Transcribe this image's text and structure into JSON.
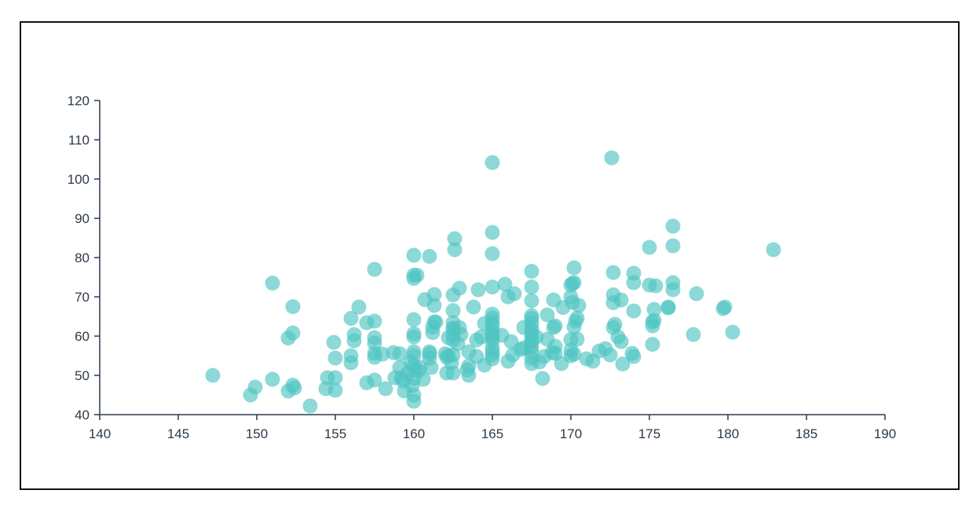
{
  "chart_data": {
    "type": "scatter",
    "title": "",
    "xlabel": "",
    "ylabel": "",
    "xlim": [
      140,
      190
    ],
    "ylim": [
      40,
      120
    ],
    "x_ticks": [
      "140",
      "145",
      "150",
      "155",
      "160",
      "165",
      "170",
      "175",
      "180",
      "185",
      "190"
    ],
    "y_ticks": [
      "40",
      "50",
      "60",
      "70",
      "80",
      "90",
      "100",
      "110",
      "120"
    ],
    "grid": false,
    "point_color": "#4ec5c1",
    "points": [
      [
        147.2,
        50
      ],
      [
        149.6,
        45
      ],
      [
        149.9,
        47
      ],
      [
        151,
        73.5
      ],
      [
        151,
        49
      ],
      [
        152,
        46
      ],
      [
        152,
        59.5
      ],
      [
        152.3,
        60.8
      ],
      [
        152.3,
        47.5
      ],
      [
        152.3,
        67.5
      ],
      [
        152.4,
        46.8
      ],
      [
        153.4,
        42.2
      ],
      [
        154.4,
        46.6
      ],
      [
        154.5,
        49.4
      ],
      [
        154.9,
        58.4
      ],
      [
        155,
        54.4
      ],
      [
        155,
        49.4
      ],
      [
        155,
        46.2
      ],
      [
        156,
        53.2
      ],
      [
        156,
        64.5
      ],
      [
        156,
        55
      ],
      [
        156.2,
        60.4
      ],
      [
        156.2,
        58.8
      ],
      [
        156.5,
        67.4
      ],
      [
        157,
        63.4
      ],
      [
        157,
        48.1
      ],
      [
        157.5,
        77
      ],
      [
        157.5,
        63.8
      ],
      [
        157.5,
        59.6
      ],
      [
        157.5,
        55.6
      ],
      [
        157.5,
        54.6
      ],
      [
        157.5,
        48.8
      ],
      [
        157.5,
        58.2
      ],
      [
        158,
        55.4
      ],
      [
        158.2,
        46.6
      ],
      [
        158.7,
        55.8
      ],
      [
        158.8,
        49.4
      ],
      [
        159.1,
        55.5
      ],
      [
        159.1,
        52
      ],
      [
        159.2,
        49.4
      ],
      [
        159.3,
        48.6
      ],
      [
        159.4,
        46
      ],
      [
        159.6,
        50.4
      ],
      [
        159.8,
        53.4
      ],
      [
        159.9,
        47.4
      ],
      [
        160,
        51.4
      ],
      [
        160,
        56
      ],
      [
        160,
        49.2
      ],
      [
        160,
        45
      ],
      [
        160,
        43.4
      ],
      [
        160,
        52.4
      ],
      [
        160,
        55
      ],
      [
        160,
        59.8
      ],
      [
        160,
        60.6
      ],
      [
        160,
        64.2
      ],
      [
        160,
        80.6
      ],
      [
        160,
        75.5
      ],
      [
        160,
        74.7
      ],
      [
        160.2,
        75.5
      ],
      [
        160.3,
        51.2
      ],
      [
        160.4,
        52
      ],
      [
        160.6,
        49
      ],
      [
        160.7,
        69.3
      ],
      [
        161,
        80.3
      ],
      [
        161,
        54.4
      ],
      [
        161,
        56
      ],
      [
        161,
        55.5
      ],
      [
        161.1,
        52
      ],
      [
        161.2,
        60.9
      ],
      [
        161.2,
        62.3
      ],
      [
        161.3,
        63.6
      ],
      [
        161.3,
        70.6
      ],
      [
        161.3,
        67.8
      ],
      [
        161.4,
        63.6
      ],
      [
        162,
        55.5
      ],
      [
        162.1,
        54.6
      ],
      [
        162.1,
        50.6
      ],
      [
        162.2,
        55
      ],
      [
        162.2,
        59.6
      ],
      [
        162.4,
        53.2
      ],
      [
        162.5,
        50.6
      ],
      [
        162.5,
        55.2
      ],
      [
        162.5,
        60.1
      ],
      [
        162.5,
        61.8
      ],
      [
        162.5,
        62
      ],
      [
        162.5,
        63.4
      ],
      [
        162.5,
        59
      ],
      [
        162.5,
        66.5
      ],
      [
        162.5,
        70.5
      ],
      [
        162.6,
        84.8
      ],
      [
        162.6,
        82
      ],
      [
        162.8,
        58
      ],
      [
        162.9,
        62.2
      ],
      [
        162.9,
        72.2
      ],
      [
        163,
        60.4
      ],
      [
        163.4,
        51.4
      ],
      [
        163.5,
        50
      ],
      [
        163.5,
        52.4
      ],
      [
        163.5,
        56
      ],
      [
        163.8,
        67.4
      ],
      [
        164,
        59
      ],
      [
        164,
        54.8
      ],
      [
        164.1,
        71.8
      ],
      [
        164.3,
        59.8
      ],
      [
        164.5,
        52.6
      ],
      [
        164.5,
        63.2
      ],
      [
        165,
        55.2
      ],
      [
        165,
        56
      ],
      [
        165,
        62.6
      ],
      [
        165,
        57
      ],
      [
        165,
        58.8
      ],
      [
        165,
        59.6
      ],
      [
        165,
        60.4
      ],
      [
        165,
        61.1
      ],
      [
        165,
        63.4
      ],
      [
        165,
        65.6
      ],
      [
        165,
        64.6
      ],
      [
        165,
        54.2
      ],
      [
        165,
        72.5
      ],
      [
        165,
        86.4
      ],
      [
        165,
        81
      ],
      [
        165,
        104.2
      ],
      [
        165.6,
        60.2
      ],
      [
        165.8,
        73.2
      ],
      [
        166,
        53.6
      ],
      [
        166,
        70
      ],
      [
        166.2,
        58.6
      ],
      [
        166.3,
        55.2
      ],
      [
        166.4,
        70.8
      ],
      [
        166.8,
        56.6
      ],
      [
        167,
        57
      ],
      [
        167,
        62.2
      ],
      [
        167.5,
        53
      ],
      [
        167.5,
        54.4
      ],
      [
        167.5,
        56
      ],
      [
        167.5,
        57.2
      ],
      [
        167.5,
        58.4
      ],
      [
        167.5,
        59
      ],
      [
        167.5,
        60
      ],
      [
        167.5,
        61
      ],
      [
        167.5,
        62
      ],
      [
        167.5,
        63.2
      ],
      [
        167.5,
        64.5
      ],
      [
        167.5,
        65.2
      ],
      [
        167.5,
        69
      ],
      [
        167.5,
        72.5
      ],
      [
        167.5,
        76.5
      ],
      [
        167.8,
        59.8
      ],
      [
        168,
        53.4
      ],
      [
        168.2,
        49.2
      ],
      [
        168.3,
        54.8
      ],
      [
        168.5,
        59.2
      ],
      [
        168.5,
        65.4
      ],
      [
        168.8,
        55.8
      ],
      [
        168.9,
        62.2
      ],
      [
        168.9,
        69.2
      ],
      [
        169,
        55.6
      ],
      [
        169,
        57.4
      ],
      [
        169,
        62.6
      ],
      [
        169.4,
        53
      ],
      [
        169.5,
        67.3
      ],
      [
        170,
        55
      ],
      [
        170,
        56.4
      ],
      [
        170,
        59.1
      ],
      [
        170,
        70
      ],
      [
        170,
        73
      ],
      [
        170.1,
        68.6
      ],
      [
        170.1,
        73.4
      ],
      [
        170.2,
        62.3
      ],
      [
        170.2,
        55.4
      ],
      [
        170.2,
        77.4
      ],
      [
        170.2,
        73.6
      ],
      [
        170.3,
        63.8
      ],
      [
        170.4,
        59.2
      ],
      [
        170.4,
        64.6
      ],
      [
        170.5,
        67.8
      ],
      [
        171,
        54.2
      ],
      [
        171.4,
        53.6
      ],
      [
        171.8,
        56.2
      ],
      [
        172.2,
        56.8
      ],
      [
        172.5,
        55.2
      ],
      [
        172.6,
        105.4
      ],
      [
        172.7,
        76.2
      ],
      [
        172.7,
        62.2
      ],
      [
        172.7,
        68.5
      ],
      [
        172.7,
        70.5
      ],
      [
        172.8,
        63
      ],
      [
        173,
        59.8
      ],
      [
        173.2,
        69.2
      ],
      [
        173.3,
        52.9
      ],
      [
        173.2,
        58.6
      ],
      [
        173.9,
        55.6
      ],
      [
        174,
        54.8
      ],
      [
        174,
        66.4
      ],
      [
        174,
        73.6
      ],
      [
        174,
        76
      ],
      [
        175,
        73
      ],
      [
        175,
        82.6
      ],
      [
        175.2,
        57.9
      ],
      [
        175.2,
        62.6
      ],
      [
        175.2,
        63.6
      ],
      [
        175.3,
        64
      ],
      [
        175.3,
        66.8
      ],
      [
        175.4,
        72.8
      ],
      [
        176.2,
        67.2
      ],
      [
        176.2,
        67.4
      ],
      [
        176.5,
        71.8
      ],
      [
        176.5,
        73.6
      ],
      [
        176.5,
        83
      ],
      [
        176.5,
        88
      ],
      [
        177.8,
        60.4
      ],
      [
        178,
        70.8
      ],
      [
        179.7,
        67
      ],
      [
        179.8,
        67.4
      ],
      [
        180.3,
        61
      ],
      [
        182.9,
        82
      ]
    ]
  }
}
